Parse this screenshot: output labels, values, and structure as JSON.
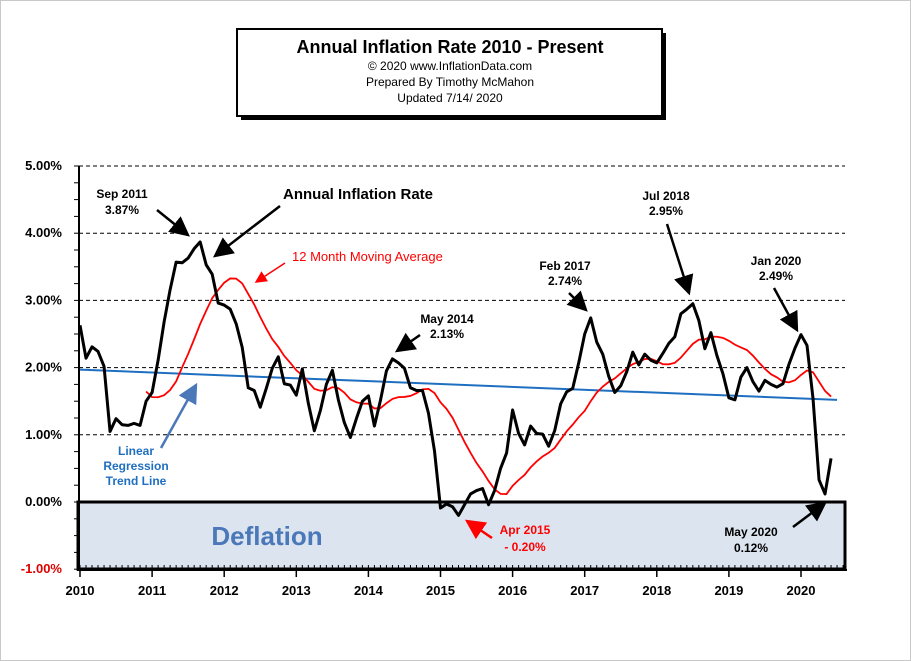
{
  "title_box": {
    "title": "Annual  Inflation Rate 2010 - Present",
    "copyright": "© 2020  www.InflationData.com",
    "prepared": "Prepared  By Timothy McMahon",
    "updated": "Updated   7/14/ 2020"
  },
  "chart_data": {
    "type": "line",
    "title": "Annual  Inflation Rate 2010 - Present",
    "xlabel": "",
    "ylabel": "",
    "xlim": [
      2010,
      2020.6
    ],
    "ylim": [
      -1,
      5
    ],
    "grid": "horizontal dashed",
    "x_tick_labels": [
      "2010",
      "2011",
      "2012",
      "2013",
      "2014",
      "2015",
      "2016",
      "2017",
      "2018",
      "2019",
      "2020"
    ],
    "y_tick_labels": [
      "-1.00%",
      "0.00%",
      "1.00%",
      "2.00%",
      "3.00%",
      "4.00%",
      "5.00%"
    ],
    "start_month": "Jan 2010",
    "series": [
      {
        "name": "Annual Inflation Rate",
        "color": "#000000",
        "values": [
          2.63,
          2.14,
          2.31,
          2.24,
          2.02,
          1.05,
          1.24,
          1.15,
          1.14,
          1.17,
          1.14,
          1.5,
          1.63,
          2.11,
          2.68,
          3.16,
          3.57,
          3.56,
          3.63,
          3.77,
          3.87,
          3.53,
          3.39,
          2.96,
          2.93,
          2.87,
          2.65,
          2.3,
          1.7,
          1.66,
          1.41,
          1.69,
          1.99,
          2.16,
          1.76,
          1.74,
          1.59,
          1.98,
          1.47,
          1.06,
          1.36,
          1.75,
          1.96,
          1.52,
          1.18,
          0.96,
          1.24,
          1.5,
          1.58,
          1.13,
          1.51,
          1.95,
          2.13,
          2.07,
          1.99,
          1.7,
          1.66,
          1.66,
          1.32,
          0.76,
          -0.09,
          -0.03,
          -0.07,
          -0.2,
          -0.04,
          0.12,
          0.17,
          0.2,
          -0.04,
          0.17,
          0.5,
          0.73,
          1.37,
          1.02,
          0.85,
          1.13,
          1.02,
          1.01,
          0.83,
          1.06,
          1.46,
          1.64,
          1.69,
          2.07,
          2.5,
          2.74,
          2.38,
          2.2,
          1.87,
          1.63,
          1.73,
          1.94,
          2.23,
          2.04,
          2.2,
          2.11,
          2.07,
          2.21,
          2.36,
          2.46,
          2.8,
          2.87,
          2.95,
          2.7,
          2.28,
          2.52,
          2.18,
          1.91,
          1.55,
          1.52,
          1.86,
          2.0,
          1.79,
          1.65,
          1.81,
          1.75,
          1.71,
          1.76,
          2.05,
          2.29,
          2.49,
          2.33,
          1.54,
          0.33,
          0.12,
          0.65
        ]
      },
      {
        "name": "12 Month Moving Average",
        "color": "#ff0000",
        "window": 12
      },
      {
        "name": "Linear Regression Trend Line",
        "color": "#1f6fc0",
        "x": [
          2010,
          2020.5
        ],
        "values": [
          1.97,
          1.52
        ]
      }
    ],
    "region": {
      "label": "Deflation",
      "y_range": [
        -1,
        0
      ],
      "fill": "#dce4f0",
      "label_color": "#4a78b8"
    },
    "annotations": {
      "sep2011": [
        "Sep 2011",
        "3.87%"
      ],
      "air": "Annual Inflation Rate",
      "ma": "12 Month Moving Average",
      "may2014": [
        "May 2014",
        "2.13%"
      ],
      "feb2017": [
        "Feb 2017",
        "2.74%"
      ],
      "jul2018": [
        "Jul 2018",
        "2.95%"
      ],
      "jan2020": [
        "Jan 2020",
        "2.49%"
      ],
      "apr2015": [
        "Apr 2015",
        "- 0.20%"
      ],
      "may2020": [
        "May 2020",
        "0.12%"
      ],
      "trend": [
        "Linear",
        "Regression",
        "Trend Line"
      ]
    }
  }
}
